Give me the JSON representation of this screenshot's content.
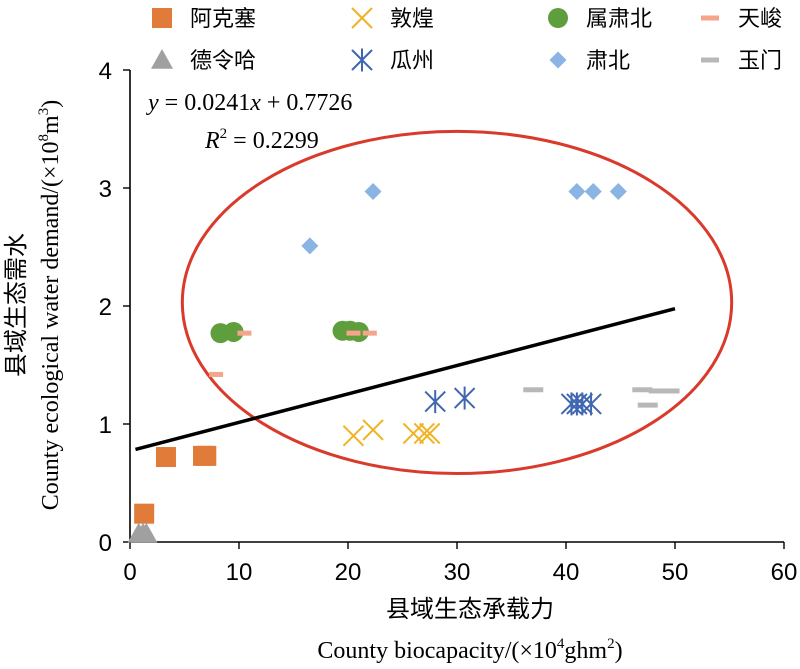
{
  "chart_data": {
    "type": "scatter",
    "xlabel_cn": "县域生态承载力",
    "xlabel_en": "County biocapacity/(×10",
    "xlabel_en_sup": "4",
    "xlabel_en_tail": "ghm",
    "xlabel_en_sup2": "2",
    "xlabel_en_close": ")",
    "ylabel_cn": "县域生态需水",
    "ylabel_en": "County ecological water demand/(×10",
    "ylabel_en_sup": "8",
    "ylabel_en_tail": "m",
    "ylabel_en_sup2": "3",
    "ylabel_en_close": ")",
    "xlim": [
      0,
      60
    ],
    "ylim": [
      0,
      4
    ],
    "x_ticks": [
      0,
      10,
      20,
      30,
      40,
      50,
      60
    ],
    "y_ticks": [
      0,
      1,
      2,
      3,
      4
    ],
    "x_tick_labels": [
      "0",
      "10",
      "20",
      "30",
      "40",
      "50",
      "60"
    ],
    "y_tick_labels": [
      "0",
      "1",
      "2",
      "3",
      "4"
    ],
    "grid": false,
    "legend_position": "top",
    "equation": {
      "line1_y": "y",
      "line1_rest": " = 0.0241",
      "line1_x": "x",
      "line1_tail": " + 0.7726",
      "line2_r": "R",
      "line2_sup": "2",
      "line2_rest": " = 0.2299"
    },
    "trendline": {
      "slope": 0.0241,
      "intercept": 0.7726,
      "x_range": [
        0.5,
        50
      ],
      "color": "#000000"
    },
    "ellipse": {
      "cx": 30,
      "cy": 2.03,
      "rx": 25.2,
      "ry": 1.45,
      "color": "#d93a2b"
    },
    "series": [
      {
        "name": "阿克塞",
        "marker": "square",
        "color": "#e07b39",
        "points": [
          [
            1.3,
            0.24
          ],
          [
            3.3,
            0.72
          ],
          [
            6.7,
            0.73
          ],
          [
            7.0,
            0.73
          ]
        ]
      },
      {
        "name": "敦煌",
        "marker": "x",
        "color": "#f0b323",
        "points": [
          [
            20.5,
            0.9
          ],
          [
            22.3,
            0.95
          ],
          [
            26.0,
            0.92
          ],
          [
            27.0,
            0.92
          ],
          [
            27.5,
            0.92
          ]
        ]
      },
      {
        "name": "属肃北",
        "marker": "circle",
        "color": "#5e9e3d",
        "points": [
          [
            8.3,
            1.77
          ],
          [
            9.5,
            1.78
          ],
          [
            19.5,
            1.79
          ],
          [
            20.2,
            1.79
          ],
          [
            21.0,
            1.78
          ]
        ]
      },
      {
        "name": "天峻",
        "marker": "dash",
        "color": "#f4a58a",
        "points": [
          [
            7.9,
            1.42
          ],
          [
            10.5,
            1.77
          ],
          [
            20.5,
            1.77
          ],
          [
            22.0,
            1.77
          ]
        ]
      },
      {
        "name": "德令哈",
        "marker": "triangle",
        "color": "#a0a0a0",
        "points": [
          [
            0.8,
            0.07
          ],
          [
            1.2,
            0.07
          ],
          [
            1.5,
            0.07
          ]
        ]
      },
      {
        "name": "瓜州",
        "marker": "asterisk",
        "color": "#3f66b0",
        "points": [
          [
            28.0,
            1.19
          ],
          [
            30.7,
            1.22
          ],
          [
            40.5,
            1.17
          ],
          [
            41.0,
            1.17
          ],
          [
            41.5,
            1.17
          ],
          [
            42.3,
            1.17
          ]
        ]
      },
      {
        "name": "肃北",
        "marker": "diamond",
        "color": "#8ab4e3",
        "points": [
          [
            16.5,
            2.51
          ],
          [
            22.3,
            2.97
          ],
          [
            41.0,
            2.97
          ],
          [
            42.5,
            2.97
          ],
          [
            44.8,
            2.97
          ]
        ]
      },
      {
        "name": "玉门",
        "marker": "dash",
        "color": "#b8b8b8",
        "points": [
          [
            37.0,
            1.29
          ],
          [
            47.0,
            1.29
          ],
          [
            48.5,
            1.28
          ],
          [
            49.5,
            1.28
          ],
          [
            47.5,
            1.16
          ]
        ]
      }
    ]
  }
}
